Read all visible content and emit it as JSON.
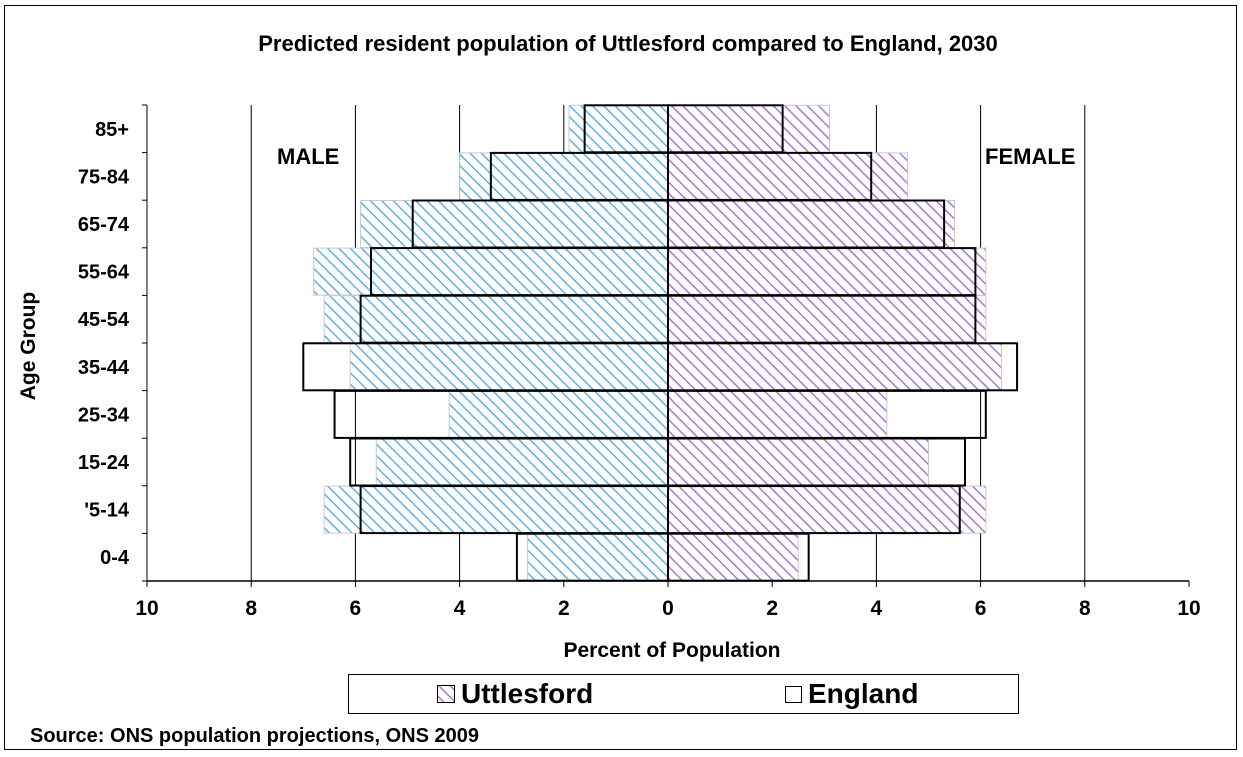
{
  "chart_data": {
    "type": "bar",
    "orientation": "horizontal-population-pyramid",
    "title": "Predicted resident population of Uttlesford compared to England, 2030",
    "xlabel": "Percent of Population",
    "ylabel": "Age Group",
    "xlim": [
      -10,
      10
    ],
    "x_ticks": [
      10,
      8,
      6,
      4,
      2,
      0,
      2,
      4,
      6,
      8,
      10
    ],
    "categories": [
      "85+",
      "75-84",
      "65-74",
      "55-64",
      "45-54",
      "35-44",
      "25-34",
      "15-24",
      "'5-14",
      "0-4"
    ],
    "side_labels": {
      "left": "MALE",
      "right": "FEMALE"
    },
    "series": [
      {
        "name": "Uttlesford",
        "male": [
          1.9,
          4.0,
          5.9,
          6.8,
          6.6,
          6.1,
          4.2,
          5.6,
          6.6,
          2.7
        ],
        "female": [
          3.1,
          4.6,
          5.5,
          6.1,
          6.1,
          6.4,
          4.2,
          5.0,
          6.1,
          2.5
        ]
      },
      {
        "name": "England",
        "male": [
          1.6,
          3.4,
          4.9,
          5.7,
          5.9,
          7.0,
          6.4,
          6.1,
          5.9,
          2.9
        ],
        "female": [
          2.2,
          3.9,
          5.3,
          5.9,
          5.9,
          6.7,
          6.1,
          5.7,
          5.6,
          2.7
        ]
      }
    ],
    "grid": {
      "vertical_lines": true
    },
    "legend": {
      "position": "bottom",
      "entries": [
        "Uttlesford",
        "England"
      ]
    },
    "colors": {
      "male_hatch": "#5fb0ea",
      "female_hatch": "#a877d8"
    }
  },
  "source": "Source: ONS population projections, ONS 2009"
}
